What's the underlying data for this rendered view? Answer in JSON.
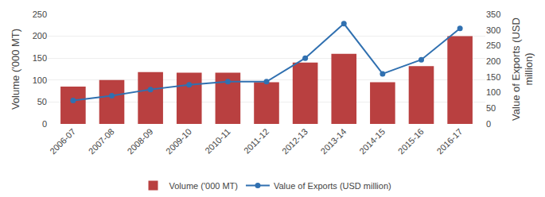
{
  "chart_data": {
    "type": "bar",
    "categories": [
      "2006-07",
      "2007-08",
      "2008-09",
      "2009-10",
      "2010-11",
      "2011-12",
      "2012-13",
      "2013-14",
      "2014-15",
      "2015-16",
      "2016-17"
    ],
    "series": [
      {
        "name": "Volume ('000 MT)",
        "type": "bar",
        "color": "#b94040",
        "values": [
          85,
          100,
          118,
          117,
          117,
          95,
          140,
          160,
          95,
          132,
          200
        ]
      },
      {
        "name": "Value of Exports (USD million)",
        "type": "line",
        "axis": "y2",
        "color": "#3070b0",
        "marker": "circle",
        "values": [
          75,
          90,
          110,
          125,
          135,
          135,
          210,
          320,
          160,
          205,
          305
        ]
      }
    ],
    "ylabel": "Volume ('000 MT)",
    "y2label": "Value of Exports (USD\nmillion)",
    "ylim": [
      0,
      250
    ],
    "yticks": [
      0,
      50,
      100,
      150,
      200,
      250
    ],
    "y2lim": [
      0,
      350
    ],
    "y2ticks": [
      0,
      50,
      100,
      150,
      200,
      250,
      300,
      350
    ],
    "grid": true,
    "legend": "bottom"
  }
}
